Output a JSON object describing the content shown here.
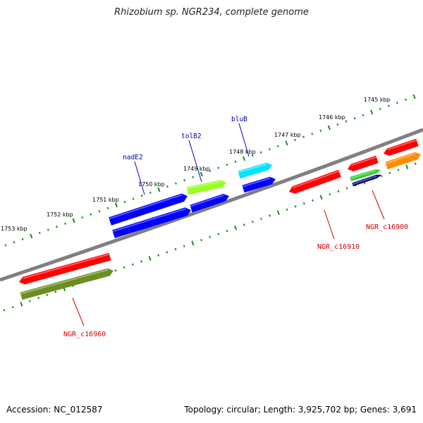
{
  "title": "Rhizobium sp. NGR234, complete genome",
  "footer": {
    "accession": "Accession: NC_012587",
    "stats": "Topology: circular; Length: 3,925,702 bp; Genes: 3,691"
  },
  "kbp_labels": [
    "1745 kbp",
    "1746 kbp",
    "1747 kbp",
    "1748 kbp",
    "1749 kbp",
    "1750 kbp",
    "1751 kbp",
    "1752 kbp",
    "1753 kbp"
  ],
  "gene_labels": [
    "bluB",
    "tolB2",
    "nadE2"
  ],
  "locus_labels": [
    "NGR_c16900",
    "NGR_c16910",
    "NGR_c16960"
  ],
  "colors": {
    "backbone": "#808080",
    "tick": "#1a8a1a",
    "gene_name_text": "#0000aa",
    "locus_name_text": "#d00000",
    "red": "#ff0000",
    "blue": "#0000ff",
    "light_green": "#99ff22",
    "cyan": "#00e5ff",
    "olive": "#6b8e23",
    "green": "#33cc33",
    "navy": "#000080",
    "orange": "#ff8c00"
  }
}
